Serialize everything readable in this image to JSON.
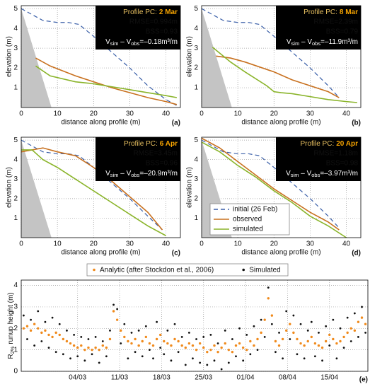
{
  "chart_data": [
    {
      "type": "line",
      "panel": "(a)",
      "ylabel": "elevation (m)",
      "xlabel": "distance along profile (m)",
      "xlim": [
        0,
        44
      ],
      "ylim": [
        0,
        5.15
      ],
      "xticks": [
        0,
        10,
        20,
        30,
        40
      ],
      "yticks": [
        1,
        2,
        3,
        4,
        5
      ],
      "grid": true,
      "annotation": {
        "profile": "Profile PC:",
        "date": "2 Mar",
        "rmse": "RMSE=0.994m",
        "bss": "BSS=0.93",
        "volume": [
          "V",
          "sim",
          " – V",
          "obs",
          "=–0.18m³/m"
        ]
      },
      "series": [
        {
          "color": "#3a5fa8",
          "dashed": true,
          "x": [
            0,
            3,
            6,
            10,
            13,
            16,
            20,
            25,
            30,
            35,
            40,
            43
          ],
          "values": [
            5,
            4.7,
            4.4,
            4.3,
            4.3,
            4.2,
            3.6,
            2.8,
            2.0,
            1.1,
            0.4,
            0.1
          ]
        },
        {
          "color": "#c8701e",
          "x": [
            4,
            8,
            15,
            20,
            25,
            30,
            35,
            40,
            43
          ],
          "values": [
            2.5,
            2.1,
            1.6,
            1.3,
            1.0,
            0.75,
            0.5,
            0.3,
            0.15
          ]
        },
        {
          "color": "#8ab42a",
          "x": [
            4,
            8,
            15,
            20,
            25,
            30,
            35,
            40,
            43
          ],
          "values": [
            2.1,
            1.6,
            1.3,
            1.2,
            1.05,
            0.9,
            0.75,
            0.6,
            0.5
          ]
        }
      ]
    },
    {
      "type": "line",
      "panel": "(b)",
      "ylabel": "elevation (m)",
      "xlabel": "distance along profile (m)",
      "xlim": [
        0,
        44
      ],
      "ylim": [
        0,
        5.15
      ],
      "xticks": [
        0,
        10,
        20,
        30,
        40
      ],
      "yticks": [
        1,
        2,
        3,
        4,
        5
      ],
      "grid": true,
      "annotation": {
        "profile": "Profile PC:",
        "date": "8 Mar",
        "rmse": "RMSE=2.39m",
        "bss": "BSS=0.79",
        "volume": [
          "V",
          "sim",
          " – V",
          "obs",
          "=–11.9m³/m"
        ]
      },
      "series": [
        {
          "color": "#3a5fa8",
          "dashed": true,
          "x": [
            0,
            3,
            6,
            10,
            13,
            16,
            20,
            25,
            30,
            35,
            38
          ],
          "values": [
            5,
            4.7,
            4.4,
            4.3,
            4.3,
            4.2,
            3.6,
            2.8,
            2.0,
            1.1,
            0.5
          ]
        },
        {
          "color": "#c8701e",
          "x": [
            4,
            8,
            12,
            20,
            25,
            30,
            35,
            38
          ],
          "values": [
            2.6,
            2.5,
            2.3,
            1.8,
            1.4,
            1.1,
            0.8,
            0.5
          ]
        },
        {
          "color": "#8ab42a",
          "x": [
            3,
            8,
            12,
            18,
            20,
            22,
            25,
            30,
            35,
            40,
            43
          ],
          "values": [
            3.05,
            2.3,
            1.8,
            1.1,
            0.8,
            0.75,
            0.7,
            0.55,
            0.4,
            0.3,
            0.25
          ]
        }
      ]
    },
    {
      "type": "line",
      "panel": "(c)",
      "ylabel": "elevation (m)",
      "xlabel": "distance along profile (m)",
      "xlim": [
        0,
        44
      ],
      "ylim": [
        0,
        5.15
      ],
      "xticks": [
        0,
        10,
        20,
        30,
        40
      ],
      "yticks": [
        1,
        2,
        3,
        4,
        5
      ],
      "grid": true,
      "annotation": {
        "profile": "Profile PC:",
        "date": "6 Apr",
        "rmse": "RMSE=3.45m",
        "bss": "BSS=0.96",
        "volume": [
          "V",
          "sim",
          " – V",
          "obs",
          "=–20.9m³/m"
        ]
      },
      "series": [
        {
          "color": "#3a5fa8",
          "dashed": true,
          "x": [
            0,
            3,
            6,
            10,
            13,
            16,
            20,
            25,
            30,
            35,
            39
          ],
          "values": [
            5,
            4.7,
            4.4,
            4.3,
            4.3,
            4.2,
            3.6,
            2.8,
            2.0,
            1.1,
            0.4
          ]
        },
        {
          "color": "#c8701e",
          "x": [
            0,
            3,
            6,
            10,
            15,
            20,
            25,
            30,
            35,
            39
          ],
          "values": [
            4.4,
            4.5,
            4.6,
            4.4,
            4.2,
            3.6,
            2.9,
            2.1,
            1.3,
            0.4
          ]
        },
        {
          "color": "#8ab42a",
          "x": [
            0,
            3,
            6,
            10,
            15,
            20,
            25,
            30,
            35,
            40
          ],
          "values": [
            4.5,
            4.5,
            4.0,
            3.6,
            3.0,
            2.4,
            1.8,
            1.2,
            0.6,
            0.1
          ]
        }
      ]
    },
    {
      "type": "line",
      "panel": "(d)",
      "ylabel": "elevation (m)",
      "xlabel": "distance along profile (m)",
      "xlim": [
        0,
        44
      ],
      "ylim": [
        0,
        5.15
      ],
      "xticks": [
        0,
        10,
        20,
        30,
        40
      ],
      "yticks": [
        1,
        2,
        3,
        4,
        5
      ],
      "grid": true,
      "legend": "lower left",
      "annotation": {
        "profile": "Profile PC:",
        "date": "20 Apr",
        "rmse": "RMSE=1.18m",
        "bss": "BSS=0.98",
        "volume": [
          "V",
          "sim",
          " – V",
          "obs",
          "=–3.97m³/m"
        ]
      },
      "series": [
        {
          "name": "initial (26 Feb)",
          "color": "#3a5fa8",
          "dashed": true,
          "x": [
            0,
            3,
            6,
            10,
            13,
            16,
            20,
            25,
            30,
            35,
            38
          ],
          "values": [
            5,
            4.7,
            4.4,
            4.3,
            4.3,
            4.2,
            3.6,
            2.8,
            2.0,
            1.1,
            0.5
          ]
        },
        {
          "name": "observed",
          "color": "#c8701e",
          "x": [
            0,
            5,
            10,
            15,
            20,
            25,
            30,
            35,
            38
          ],
          "values": [
            5.1,
            4.6,
            3.9,
            3.2,
            2.5,
            1.9,
            1.3,
            0.8,
            0.4
          ]
        },
        {
          "name": "simulated",
          "color": "#8ab42a",
          "x": [
            0,
            5,
            10,
            15,
            20,
            25,
            30,
            35,
            40
          ],
          "values": [
            4.9,
            4.4,
            3.7,
            3.1,
            2.4,
            1.8,
            1.1,
            0.6,
            0.0
          ]
        }
      ]
    },
    {
      "type": "scatter",
      "panel": "(e)",
      "ylabel": [
        "R",
        "2%",
        " runup height (m)"
      ],
      "legend": "upper center",
      "xlim": [
        -5.4,
        52.4
      ],
      "ylim": [
        0,
        4.25
      ],
      "grid": true,
      "yticks": [
        0,
        1,
        2,
        3,
        4
      ],
      "xticks": [
        {
          "value": 4,
          "label": "04/03"
        },
        {
          "value": 11,
          "label": "11/03"
        },
        {
          "value": 18,
          "label": "18/03"
        },
        {
          "value": 25,
          "label": "25/03"
        },
        {
          "value": 32,
          "label": "01/04"
        },
        {
          "value": 39,
          "label": "08/04"
        },
        {
          "value": 46,
          "label": "15/04"
        }
      ],
      "x": [
        -5,
        -4.4,
        -3.8,
        -3.2,
        -2.6,
        -2,
        -1.4,
        -0.8,
        -0.2,
        0.4,
        1,
        1.6,
        2.2,
        2.8,
        3.4,
        4,
        4.6,
        5.2,
        5.8,
        6.4,
        7,
        7.6,
        8.2,
        8.8,
        9.4,
        10,
        10.6,
        11.2,
        11.8,
        12.4,
        13,
        13.6,
        14.2,
        14.8,
        15.4,
        16,
        16.6,
        17.2,
        17.8,
        18.4,
        19,
        19.6,
        20.2,
        20.8,
        21.4,
        22,
        22.6,
        23.2,
        23.8,
        24.4,
        25,
        25.6,
        26.2,
        26.8,
        27.4,
        28,
        28.6,
        29.2,
        29.8,
        30.4,
        31,
        31.6,
        32.2,
        32.8,
        33.4,
        34,
        34.6,
        35.2,
        35.8,
        36.4,
        37,
        37.6,
        38.2,
        38.8,
        39.4,
        40,
        40.6,
        41.2,
        41.8,
        42.4,
        43,
        43.6,
        44.2,
        44.8,
        45.4,
        46,
        46.6,
        47.2,
        47.8,
        48.4,
        49,
        49.6,
        50.2,
        50.8,
        51.4,
        52
      ],
      "series": [
        {
          "name": "Analytic (after Stockdon et al., 2006)",
          "color": "#f08a1c",
          "values": [
            2.0,
            2.1,
            1.9,
            2.2,
            2.0,
            1.8,
            1.9,
            1.7,
            1.6,
            1.8,
            1.7,
            1.5,
            1.4,
            1.3,
            1.2,
            1.1,
            1.2,
            1.0,
            1.1,
            1.0,
            1.1,
            1.0,
            1.2,
            1.1,
            1.5,
            2.8,
            2.4,
            1.9,
            1.6,
            1.4,
            1.3,
            1.5,
            1.2,
            1.4,
            1.6,
            1.3,
            1.2,
            1.5,
            1.7,
            1.4,
            1.3,
            1.2,
            1.5,
            1.4,
            1.2,
            1.1,
            1.3,
            1.2,
            1.0,
            1.3,
            1.1,
            0.9,
            1.0,
            1.2,
            0.9,
            1.1,
            1.3,
            1.0,
            0.9,
            1.2,
            1.3,
            1.1,
            1.0,
            1.4,
            1.2,
            1.5,
            1.8,
            2.4,
            3.4,
            2.6,
            1.4,
            1.2,
            1.5,
            1.9,
            2.2,
            1.8,
            1.5,
            1.3,
            1.2,
            1.4,
            1.6,
            1.3,
            1.2,
            1.1,
            1.4,
            1.7,
            1.5,
            1.3,
            1.4,
            1.6,
            1.8,
            2.0,
            1.9,
            2.3,
            2.5,
            2.2
          ]
        },
        {
          "name": "Simulated",
          "color": "#111111",
          "values": [
            2.6,
            1.5,
            2.4,
            1.2,
            2.8,
            1.4,
            2.3,
            1.1,
            2.5,
            0.9,
            2.2,
            0.8,
            1.9,
            0.6,
            1.7,
            0.7,
            1.6,
            0.5,
            1.5,
            0.8,
            1.6,
            0.4,
            1.4,
            0.7,
            1.9,
            3.1,
            2.9,
            1.3,
            2.2,
            0.6,
            1.8,
            0.9,
            1.9,
            0.7,
            2.1,
            1.0,
            0.6,
            2.3,
            1.1,
            0.8,
            1.9,
            0.5,
            2.2,
            0.9,
            1.6,
            0.3,
            1.8,
            0.6,
            1.5,
            0.4,
            1.6,
            0.3,
            1.7,
            0.5,
            1.3,
            0.1,
            1.9,
            0.4,
            1.5,
            0.7,
            2.0,
            0.5,
            1.7,
            0.8,
            2.1,
            1.0,
            2.4,
            1.6,
            3.9,
            2.2,
            0.9,
            1.8,
            0.6,
            2.8,
            1.5,
            2.6,
            0.8,
            2.2,
            0.6,
            1.9,
            2.3,
            0.7,
            1.8,
            0.5,
            2.1,
            1.2,
            2.4,
            0.6,
            2.0,
            1.1,
            2.5,
            1.4,
            2.7,
            1.6,
            3.0,
            1.8
          ]
        }
      ]
    }
  ]
}
